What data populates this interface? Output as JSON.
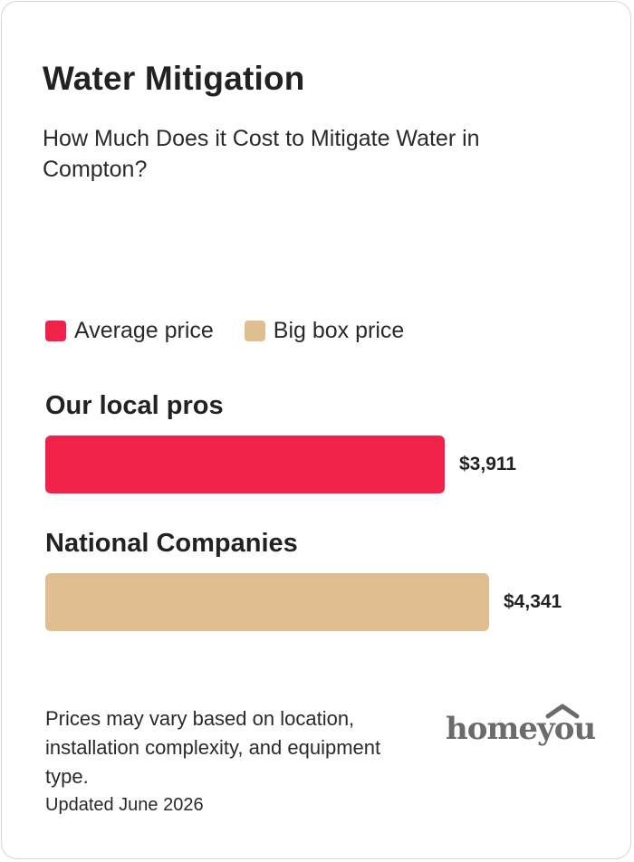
{
  "header": {
    "title": "Water Mitigation",
    "subtitle": "How Much Does it Cost to Mitigate Water in Compton?"
  },
  "colors": {
    "average": "#f0224a",
    "big_box": "#dfbe90",
    "logo": "#6b6b6b"
  },
  "legend": {
    "average_label": "Average price",
    "big_box_label": "Big box price"
  },
  "chart_data": {
    "type": "bar",
    "orientation": "horizontal",
    "categories": [
      "Our local pros",
      "National Companies"
    ],
    "values": [
      3911,
      4341
    ],
    "value_labels": [
      "$3,911",
      "$4,341"
    ],
    "legend": [
      "Average price",
      "Big box price"
    ],
    "grid": false,
    "legend_placement": "top-left"
  },
  "footer": {
    "note": "Prices may vary based on location, installation complexity, and equipment type.",
    "updated": "Updated June 2026",
    "logo_text": "homeyou",
    "logo_icon": "house-roof-icon"
  }
}
